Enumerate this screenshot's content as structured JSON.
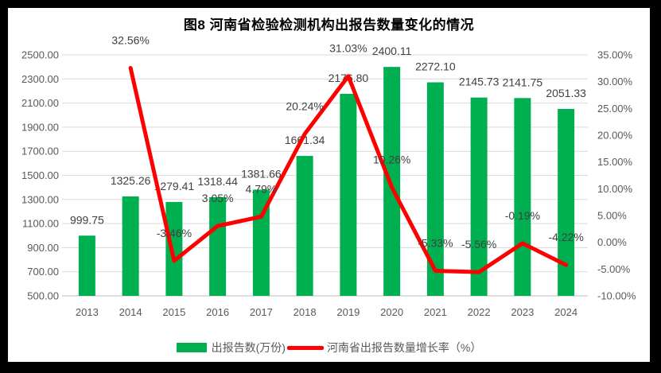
{
  "title": "图8  河南省检验检测机构出报告数量变化的情况",
  "legend": [
    {
      "label": "出报告数(万份)",
      "marker": "bar-swatch",
      "color": "#00B050"
    },
    {
      "label": "河南省出报告数量增长率（%）",
      "marker": "line-swatch",
      "color": "#FF0000"
    }
  ],
  "colors": {
    "bar": "#00B050",
    "line": "#FF0000",
    "gridline": "#D9D9D9",
    "axis_line": "#BFBFBF",
    "axis_text": "#595959",
    "data_label_text": "#404040",
    "title_text": "#000000",
    "chart_background": "#FFFFFF",
    "frame_background": "#000000"
  },
  "chart_data": {
    "type": "combo",
    "title": "图8  河南省检验检测机构出报告数量变化的情况",
    "categories": [
      "2013",
      "2014",
      "2015",
      "2016",
      "2017",
      "2018",
      "2019",
      "2020",
      "2021",
      "2022",
      "2023",
      "2024"
    ],
    "series": [
      {
        "name": "出报告数(万份)",
        "type": "bar",
        "axis": "left",
        "color": "#00B050",
        "values": [
          999.75,
          1325.26,
          1279.41,
          1318.44,
          1381.66,
          1661.34,
          2176.8,
          2400.11,
          2272.1,
          2145.73,
          2141.75,
          2051.33
        ],
        "labels": [
          "999.75",
          "1325.26",
          "1279.41",
          "1318.44",
          "1381.66",
          "1661.34",
          "2176.80",
          "2400.11",
          "2272.10",
          "2145.73",
          "2141.75",
          "2051.33"
        ]
      },
      {
        "name": "河南省出报告数量增长率（%）",
        "type": "line",
        "axis": "right",
        "color": "#FF0000",
        "values": [
          null,
          32.56,
          -3.46,
          3.05,
          4.79,
          20.24,
          31.03,
          10.26,
          -5.33,
          -5.56,
          -0.19,
          -4.22
        ],
        "labels": [
          null,
          "32.56%",
          "-3.46%",
          "3.05%",
          "4.79%",
          "20.24%",
          "31.03%",
          "10.26%",
          "-5.33%",
          "-5.56%",
          "-0.19%",
          "-4.22%"
        ]
      }
    ],
    "y_left": {
      "min": 500,
      "max": 2500,
      "step": 200,
      "ticks_top_down": [
        "2500.00",
        "2300.00",
        "2100.00",
        "1900.00",
        "1700.00",
        "1500.00",
        "1300.00",
        "1100.00",
        "900.00",
        "700.00",
        "500.00"
      ]
    },
    "y_right": {
      "min": -10,
      "max": 35,
      "step": 5,
      "ticks_top_down": [
        "35.00%",
        "30.00%",
        "25.00%",
        "20.00%",
        "15.00%",
        "10.00%",
        "5.00%",
        "0.00%",
        "-5.00%",
        "-10.00%"
      ]
    },
    "grid": true,
    "legend_position": "bottom"
  }
}
